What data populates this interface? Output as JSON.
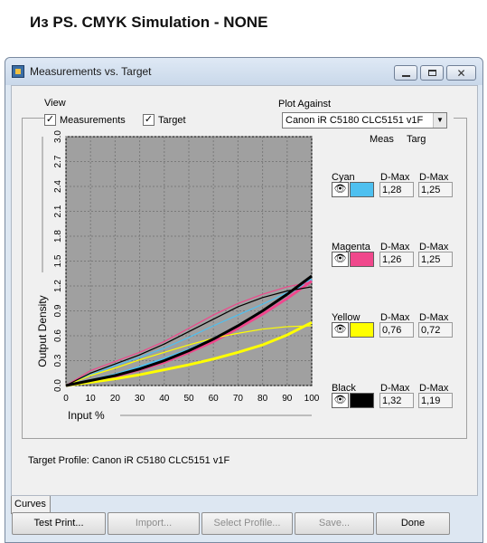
{
  "caption": "Из PS. CMYK Simulation - NONE",
  "window": {
    "title": "Measurements vs. Target",
    "controls": [
      "minimize",
      "maximize",
      "close"
    ]
  },
  "view": {
    "label": "View",
    "measurements_label": "Measurements",
    "measurements_checked": true,
    "target_label": "Target",
    "target_checked": true
  },
  "plot_against": {
    "label": "Plot Against",
    "value": "Canon iR C5180 CLC5151 v1F"
  },
  "columns": {
    "meas": "Meas",
    "targ": "Targ"
  },
  "channels": [
    {
      "name": "Cyan",
      "dmax_label": "D-Max",
      "meas": "1,28",
      "targ": "1,25",
      "color": "#4ec0f0"
    },
    {
      "name": "Magenta",
      "dmax_label": "D-Max",
      "meas": "1,26",
      "targ": "1,25",
      "color": "#f0488c"
    },
    {
      "name": "Yellow",
      "dmax_label": "D-Max",
      "meas": "0,76",
      "targ": "0,72",
      "color": "#ffff00"
    },
    {
      "name": "Black",
      "dmax_label": "D-Max",
      "meas": "1,32",
      "targ": "1,19",
      "color": "#000000"
    }
  ],
  "target_profile": "Target Profile: Canon iR C5180 CLC5151 v1F",
  "tabs": [
    "Curves"
  ],
  "buttons": [
    {
      "label": "Test Print...",
      "enabled": true
    },
    {
      "label": "Import...",
      "enabled": false
    },
    {
      "label": "Select Profile...",
      "enabled": false
    },
    {
      "label": "Save...",
      "enabled": false
    },
    {
      "label": "Done",
      "enabled": true
    }
  ],
  "chart_data": {
    "type": "line",
    "xlabel": "Input %",
    "ylabel": "Output Density",
    "xlim": [
      0,
      100
    ],
    "ylim": [
      0,
      3.0
    ],
    "xticks": [
      "0",
      "10",
      "20",
      "30",
      "40",
      "50",
      "60",
      "70",
      "80",
      "90",
      "100"
    ],
    "yticks": [
      "0.0",
      "0.3",
      "0.6",
      "0.9",
      "1.2",
      "1.5",
      "1.8",
      "2.1",
      "2.4",
      "2.7",
      "3.0"
    ],
    "grid": true,
    "background": "#a0a0a0",
    "series": [
      {
        "name": "Cyan",
        "kind": "measurement",
        "color": "#4ec0f0",
        "x": [
          0,
          10,
          20,
          30,
          40,
          50,
          60,
          70,
          80,
          90,
          100
        ],
        "y": [
          0.0,
          0.06,
          0.13,
          0.22,
          0.32,
          0.43,
          0.56,
          0.7,
          0.86,
          1.05,
          1.28
        ]
      },
      {
        "name": "Cyan",
        "kind": "target",
        "color": "#4ec0f0",
        "x": [
          0,
          10,
          20,
          30,
          40,
          50,
          60,
          70,
          80,
          90,
          100
        ],
        "y": [
          0.0,
          0.13,
          0.24,
          0.34,
          0.45,
          0.58,
          0.72,
          0.85,
          0.98,
          1.12,
          1.25
        ]
      },
      {
        "name": "Magenta",
        "kind": "measurement",
        "color": "#f0488c",
        "x": [
          0,
          10,
          20,
          30,
          40,
          50,
          60,
          70,
          80,
          90,
          100
        ],
        "y": [
          0.0,
          0.05,
          0.11,
          0.19,
          0.28,
          0.4,
          0.53,
          0.69,
          0.86,
          1.05,
          1.26
        ]
      },
      {
        "name": "Magenta",
        "kind": "target",
        "color": "#f0488c",
        "x": [
          0,
          10,
          20,
          30,
          40,
          50,
          60,
          70,
          80,
          90,
          100
        ],
        "y": [
          0.0,
          0.18,
          0.29,
          0.4,
          0.53,
          0.69,
          0.85,
          0.99,
          1.1,
          1.19,
          1.25
        ]
      },
      {
        "name": "Yellow",
        "kind": "measurement",
        "color": "#ffff00",
        "x": [
          0,
          10,
          20,
          30,
          40,
          50,
          60,
          70,
          80,
          90,
          100
        ],
        "y": [
          0.0,
          0.04,
          0.08,
          0.13,
          0.19,
          0.25,
          0.32,
          0.4,
          0.49,
          0.61,
          0.76
        ]
      },
      {
        "name": "Yellow",
        "kind": "target",
        "color": "#ffff00",
        "x": [
          0,
          10,
          20,
          30,
          40,
          50,
          60,
          70,
          80,
          90,
          100
        ],
        "y": [
          0.0,
          0.12,
          0.21,
          0.31,
          0.4,
          0.49,
          0.57,
          0.63,
          0.68,
          0.71,
          0.72
        ]
      },
      {
        "name": "Black",
        "kind": "measurement",
        "color": "#000000",
        "x": [
          0,
          10,
          20,
          30,
          40,
          50,
          60,
          70,
          80,
          90,
          100
        ],
        "y": [
          0.0,
          0.06,
          0.12,
          0.2,
          0.3,
          0.42,
          0.56,
          0.72,
          0.9,
          1.1,
          1.32
        ]
      },
      {
        "name": "Black",
        "kind": "target",
        "color": "#000000",
        "x": [
          0,
          10,
          20,
          30,
          40,
          50,
          60,
          70,
          80,
          90,
          100
        ],
        "y": [
          0.0,
          0.15,
          0.26,
          0.37,
          0.5,
          0.65,
          0.8,
          0.95,
          1.06,
          1.14,
          1.19
        ]
      }
    ]
  }
}
